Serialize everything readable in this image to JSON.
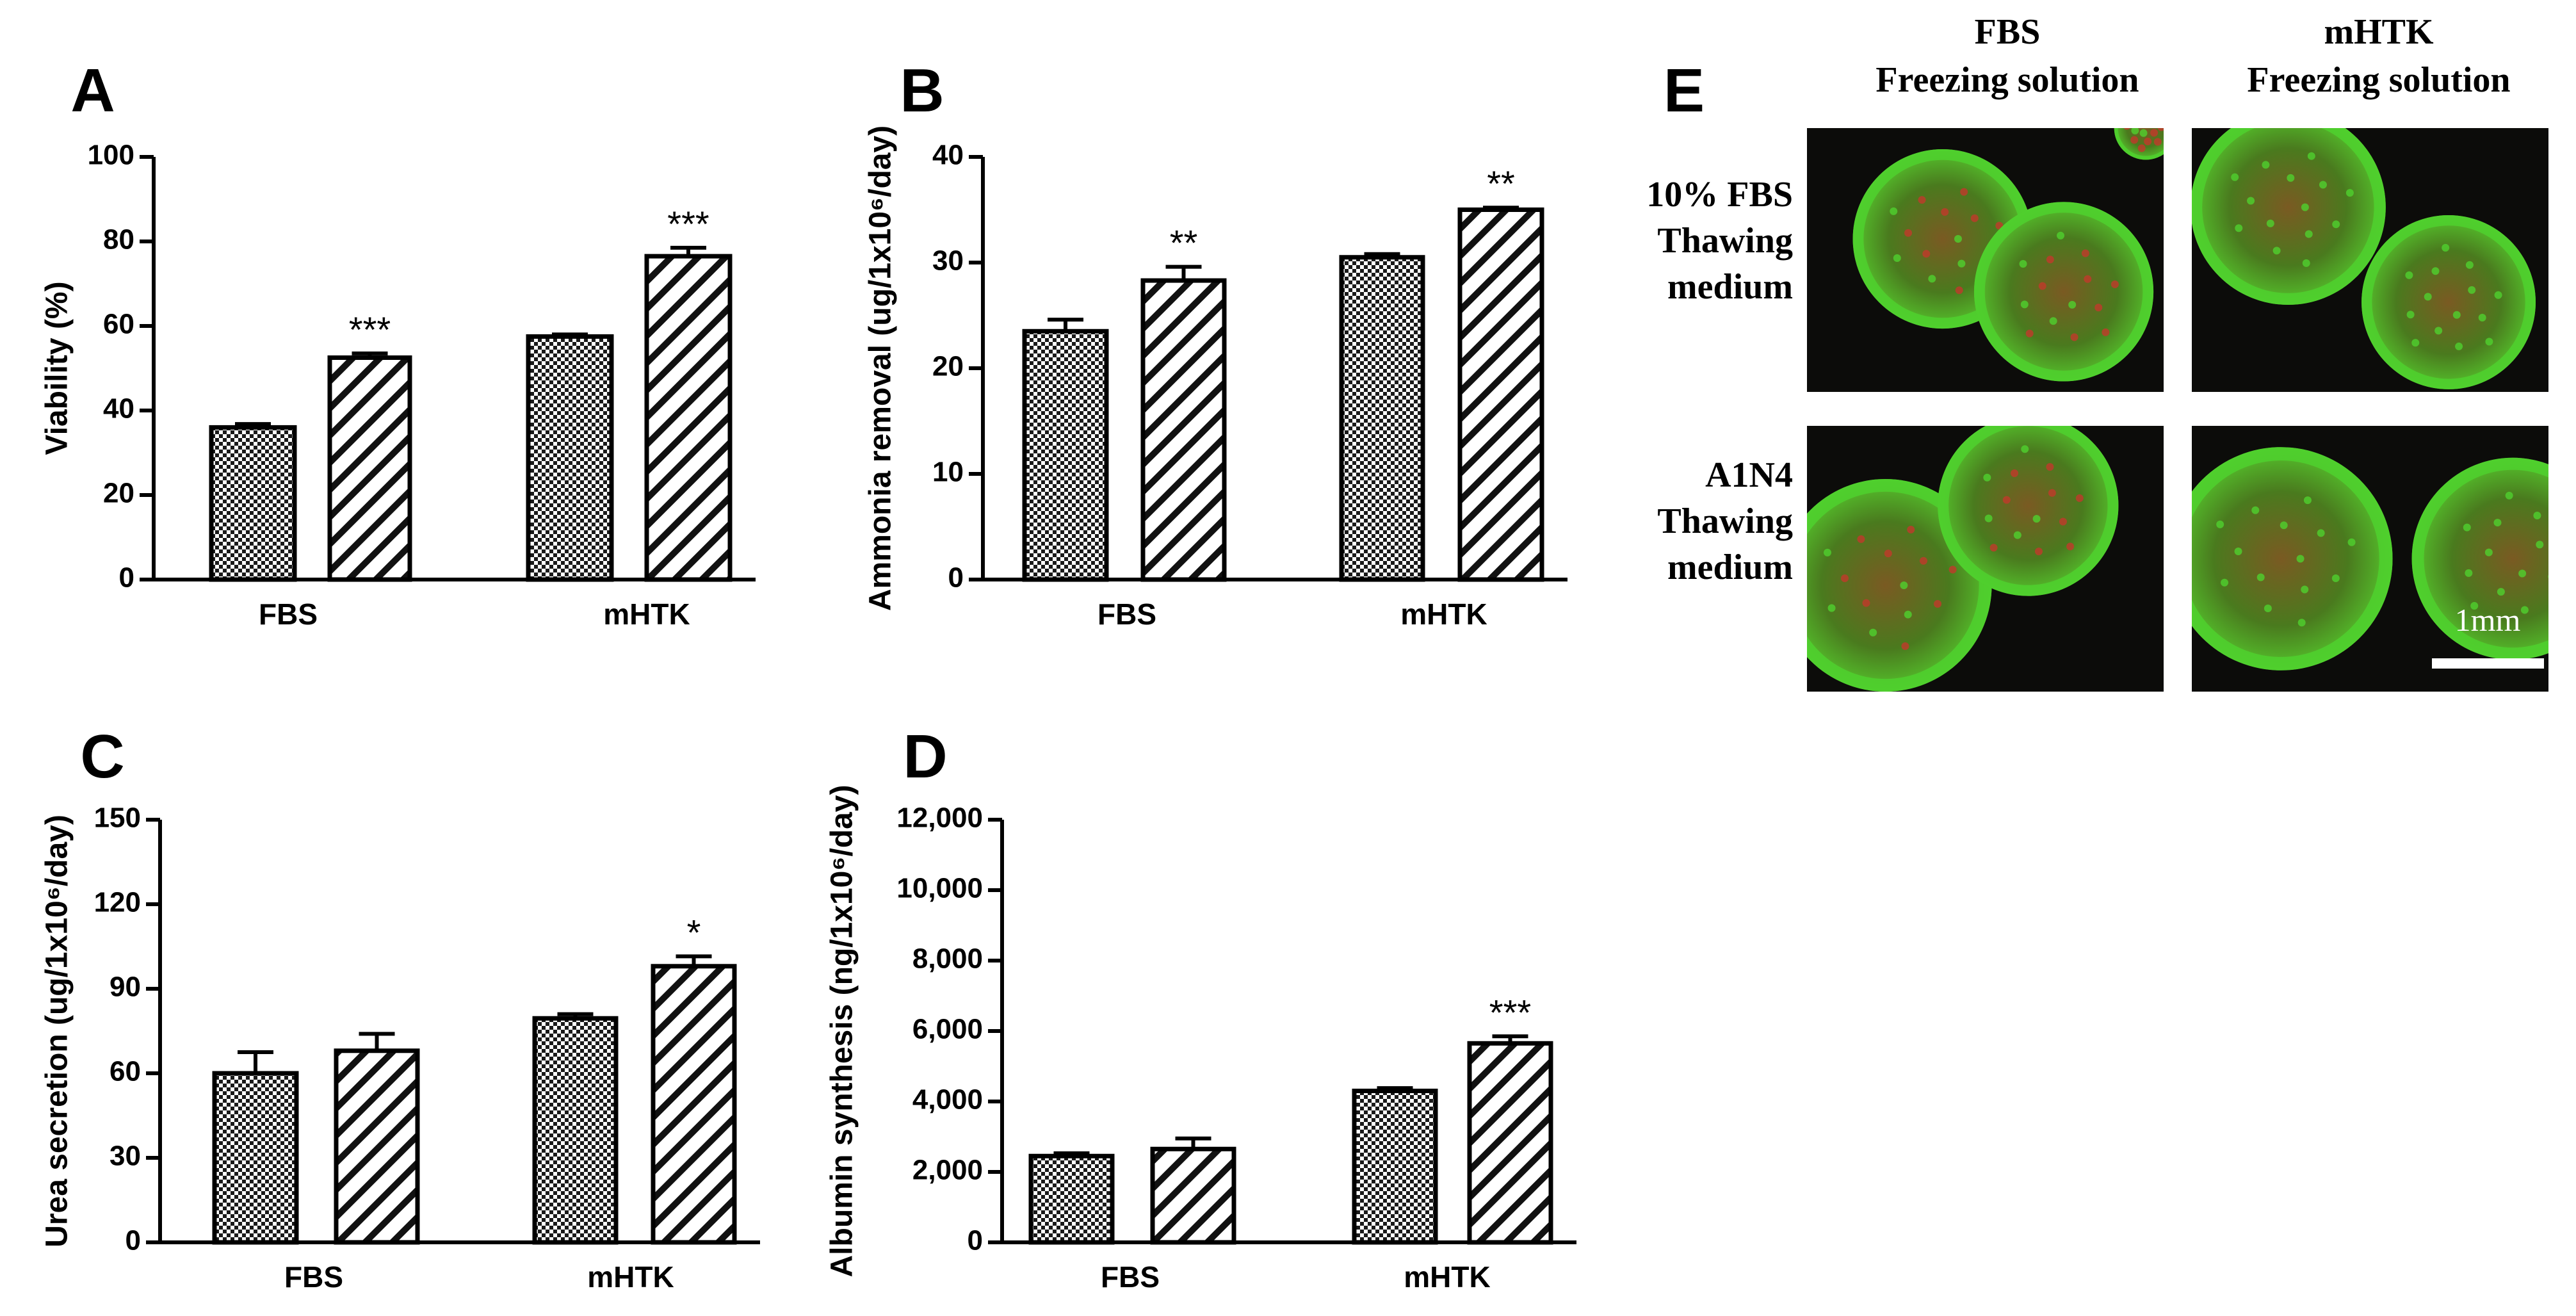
{
  "chart_data": [
    {
      "panel": "A",
      "type": "bar",
      "ylabel": "Viability (%)",
      "ylim": [
        0,
        100
      ],
      "yticks": [
        "0",
        "20",
        "40",
        "60",
        "80",
        "100"
      ],
      "categories": [
        "FBS",
        "mHTK"
      ],
      "series": [
        {
          "pattern": "checker",
          "values": [
            36,
            57.5
          ],
          "errors": [
            0.8,
            0.5
          ]
        },
        {
          "pattern": "hatch",
          "values": [
            52.5,
            76.5
          ],
          "errors": [
            1.0,
            2.0
          ]
        }
      ],
      "annotations": [
        "***",
        "***"
      ]
    },
    {
      "panel": "B",
      "type": "bar",
      "ylabel": "Ammonia removal (ug/1x10⁶/day)",
      "ylim": [
        0,
        40
      ],
      "yticks": [
        "0",
        "10",
        "20",
        "30",
        "40"
      ],
      "categories": [
        "FBS",
        "mHTK"
      ],
      "series": [
        {
          "pattern": "checker",
          "values": [
            23.5,
            30.5
          ],
          "errors": [
            1.1,
            0.3
          ]
        },
        {
          "pattern": "hatch",
          "values": [
            28.3,
            35.0
          ],
          "errors": [
            1.3,
            0.2
          ]
        }
      ],
      "annotations": [
        "**",
        "**"
      ]
    },
    {
      "panel": "C",
      "type": "bar",
      "ylabel": "Urea secretion (ug/1x10⁶/day)",
      "ylim": [
        0,
        150
      ],
      "yticks": [
        "0",
        "30",
        "60",
        "90",
        "120",
        "150"
      ],
      "categories": [
        "FBS",
        "mHTK"
      ],
      "series": [
        {
          "pattern": "checker",
          "values": [
            60,
            79.5
          ],
          "errors": [
            7.5,
            1.5
          ]
        },
        {
          "pattern": "hatch",
          "values": [
            68,
            98
          ],
          "errors": [
            6,
            3.5
          ]
        }
      ],
      "annotations": [
        "",
        "*"
      ]
    },
    {
      "panel": "D",
      "type": "bar",
      "ylabel": "Albumin synthesis (ng/1x10⁶/day)",
      "ylim": [
        0,
        12000
      ],
      "yticks": [
        "0",
        "2,000",
        "4,000",
        "6,000",
        "8,000",
        "10,000",
        "12,000"
      ],
      "categories": [
        "FBS",
        "mHTK"
      ],
      "series": [
        {
          "pattern": "checker",
          "values": [
            2450,
            4300
          ],
          "errors": [
            80,
            80
          ]
        },
        {
          "pattern": "hatch",
          "values": [
            2650,
            5650
          ],
          "errors": [
            300,
            200
          ]
        }
      ],
      "annotations": [
        "",
        "***"
      ]
    }
  ],
  "panel_e": {
    "label": "E",
    "columns": [
      [
        "FBS",
        "Freezing solution"
      ],
      [
        "mHTK",
        "Freezing solution"
      ]
    ],
    "rows": [
      [
        "10% FBS",
        "Thawing",
        "medium"
      ],
      [
        "A1N4",
        "Thawing",
        "medium"
      ]
    ],
    "scale_bar_label": "1mm",
    "colors": {
      "background": "#0c0c0a",
      "live_stain": "#4fd12e",
      "dead_stain": "#c0392b"
    }
  }
}
